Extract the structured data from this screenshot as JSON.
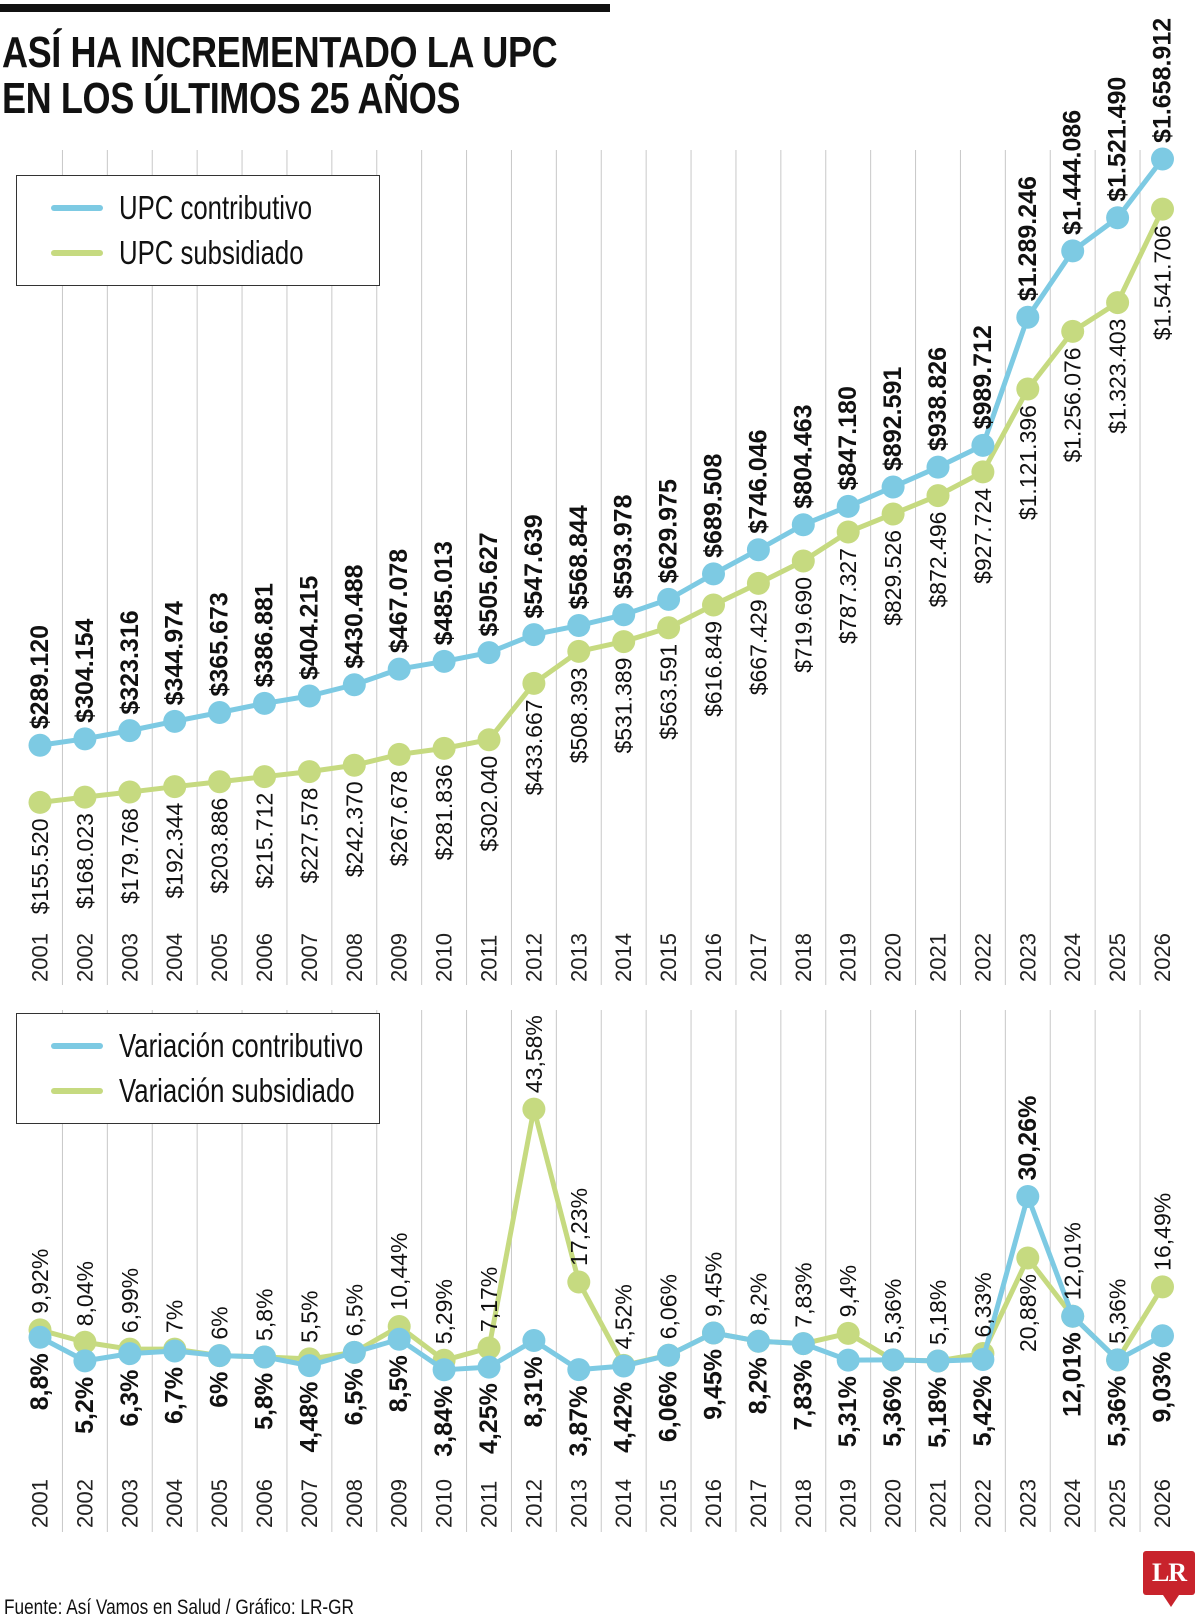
{
  "title_lines": [
    "ASÍ HA INCREMENTADO LA UPC",
    "EN LOS ÚLTIMOS 25 AÑOS"
  ],
  "source": "Fuente: Así Vamos en Salud / Gráfico: LR-GR",
  "logo": "LR",
  "colors": {
    "contributivo": "#7dcae3",
    "subsidiado": "#c6da80",
    "grid": "#c8c8c8"
  },
  "chart_data": [
    {
      "type": "line",
      "years": [
        "2001",
        "2002",
        "2003",
        "2004",
        "2005",
        "2006",
        "2007",
        "2008",
        "2009",
        "2010",
        "2011",
        "2012",
        "2013",
        "2014",
        "2015",
        "2016",
        "2017",
        "2018",
        "2019",
        "2020",
        "2021",
        "2022",
        "2023",
        "2024",
        "2025",
        "2026"
      ],
      "legend": [
        "UPC contributivo",
        "UPC subsidiado"
      ],
      "legend_placement": "top-left",
      "grid": "vertical",
      "series": [
        {
          "name": "UPC contributivo",
          "values": [
            289120,
            304154,
            323316,
            344974,
            365673,
            386881,
            404215,
            430488,
            467078,
            485013,
            505627,
            547639,
            568844,
            593978,
            629975,
            689508,
            746046,
            804463,
            847180,
            892591,
            938826,
            989712,
            1289246,
            1444086,
            1521490,
            1658912
          ],
          "labels": [
            "$289.120",
            "$304.154",
            "$323.316",
            "$344.974",
            "$365.673",
            "$386.881",
            "$404.215",
            "$430.488",
            "$467.078",
            "$485.013",
            "$505.627",
            "$547.639",
            "$568.844",
            "$593.978",
            "$629.975",
            "$689.508",
            "$746.046",
            "$804.463",
            "$847.180",
            "$892.591",
            "$938.826",
            "$989.712",
            "$1.289.246",
            "$1.444.086",
            "$1.521.490",
            "$1.658.912"
          ]
        },
        {
          "name": "UPC subsidiado",
          "values": [
            155520,
            168023,
            179768,
            192344,
            203886,
            215712,
            227578,
            242370,
            267678,
            281836,
            302040,
            433667,
            508393,
            531389,
            563591,
            616849,
            667429,
            719690,
            787327,
            829526,
            872496,
            927724,
            1121396,
            1256076,
            1323403,
            1541706
          ],
          "labels": [
            "$155.520",
            "$168.023",
            "$179.768",
            "$192.344",
            "$203.886",
            "$215.712",
            "$227.578",
            "$242.370",
            "$267.678",
            "$281.836",
            "$302.040",
            "$433.667",
            "$508.393",
            "$531.389",
            "$563.591",
            "$616.849",
            "$667.429",
            "$719.690",
            "$787.327",
            "$829.526",
            "$872.496",
            "$927.724",
            "$1.121.396",
            "$1.256.076",
            "$1.323.403",
            "$1.541.706"
          ]
        }
      ]
    },
    {
      "type": "line",
      "years": [
        "2001",
        "2002",
        "2003",
        "2004",
        "2005",
        "2006",
        "2007",
        "2008",
        "2009",
        "2010",
        "2011",
        "2012",
        "2013",
        "2014",
        "2015",
        "2016",
        "2017",
        "2018",
        "2019",
        "2020",
        "2021",
        "2022",
        "2023",
        "2024",
        "2025",
        "2026"
      ],
      "legend": [
        "Variación contributivo",
        "Variación subsidiado"
      ],
      "legend_placement": "top-left",
      "grid": "vertical",
      "series": [
        {
          "name": "Variación contributivo",
          "values": [
            8.8,
            5.2,
            6.3,
            6.7,
            6,
            5.8,
            4.48,
            6.5,
            8.5,
            3.84,
            4.25,
            8.31,
            3.87,
            4.42,
            6.06,
            9.45,
            8.2,
            7.83,
            5.31,
            5.36,
            5.18,
            5.42,
            30.26,
            12.01,
            5.36,
            9.03
          ],
          "labels": [
            "8,8%",
            "5,2%",
            "6,3%",
            "6,7%",
            "6%",
            "5,8%",
            "4,48%",
            "6,5%",
            "8,5%",
            "3,84%",
            "4,25%",
            "8,31%",
            "3,87%",
            "4,42%",
            "6,06%",
            "9,45%",
            "8,2%",
            "7,83%",
            "5,31%",
            "5,36%",
            "5,18%",
            "5,42%",
            "30,26%",
            "12,01%",
            "5,36%",
            "9,03%"
          ]
        },
        {
          "name": "Variación subsidiado",
          "values": [
            9.92,
            8.04,
            6.99,
            7,
            6,
            5.8,
            5.5,
            6.5,
            10.44,
            5.29,
            7.17,
            43.58,
            17.23,
            4.52,
            6.06,
            9.45,
            8.2,
            7.83,
            9.4,
            5.36,
            5.18,
            6.33,
            20.88,
            12.01,
            5.36,
            16.49
          ],
          "labels": [
            "9,92%",
            "8,04%",
            "6,99%",
            "7%",
            "6%",
            "5,8%",
            "5,5%",
            "6,5%",
            "10,44%",
            "5,29%",
            "7,17%",
            "43,58%",
            "17,23%",
            "4,52%",
            "6,06%",
            "9,45%",
            "8,2%",
            "7,83%",
            "9,4%",
            "5,36%",
            "5,18%",
            "6,33%",
            "20,88%",
            "12,01%",
            "5,36%",
            "16,49%"
          ]
        }
      ]
    }
  ]
}
